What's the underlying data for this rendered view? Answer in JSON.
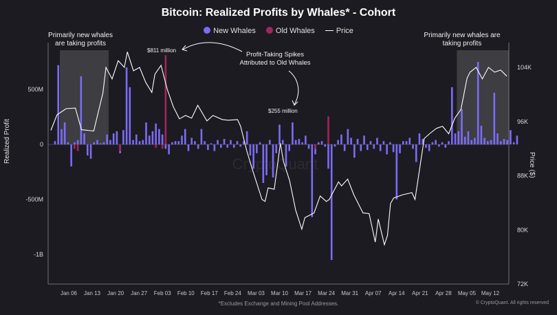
{
  "title": "Bitcoin: Realized Profits by Whales* - Cohort",
  "legend": [
    {
      "name": "New Whales",
      "color": "#7b6cf6",
      "kind": "dot"
    },
    {
      "name": "Old Whales",
      "color": "#a3255f",
      "kind": "dot"
    },
    {
      "name": "Price",
      "color": "#ffffff",
      "kind": "line"
    }
  ],
  "footnote": "*Excludes Exchange and Mining Pool Addresses.",
  "credit": "© CryptoQuant. All rights reserved",
  "watermark": "CryptoQuant",
  "annotations": {
    "left_box": "Primarily new whales are taking profits",
    "right_box": "Primarily new whales are taking profits",
    "spike_811": "$811 million",
    "spike_255": "$255 million",
    "center_note": "Profit-Taking Spikes Attributed to Old Whales"
  },
  "chart_data": {
    "type": "bar",
    "title": "Bitcoin: Realized Profits by Whales* - Cohort",
    "ylabel": "Realized Profit",
    "ylabel_right": "Price ($)",
    "left_axis": {
      "ticks": [
        500000000,
        0,
        -500000000,
        -1000000000
      ],
      "tick_labels": [
        "500M",
        "0",
        "-500M",
        "-1B"
      ],
      "range": [
        -1300000000,
        900000000
      ]
    },
    "right_axis": {
      "ticks": [
        104000,
        96000,
        88000,
        80000,
        72000
      ],
      "tick_labels": [
        "104K",
        "96K",
        "88K",
        "80K",
        "72K"
      ],
      "range": [
        72000,
        107000
      ]
    },
    "x_ticks": [
      "Jan 06",
      "Jan 13",
      "Jan 20",
      "Jan 27",
      "Feb 03",
      "Feb 10",
      "Feb 17",
      "Feb 24",
      "Mar 03",
      "Mar 10",
      "Mar 17",
      "Mar 24",
      "Mar 31",
      "Apr 07",
      "Apr 14",
      "Apr 21",
      "Apr 28",
      "May 05",
      "May 12"
    ],
    "days": 139,
    "new_whales": [
      30,
      720,
      140,
      200,
      20,
      -200,
      20,
      40,
      620,
      100,
      -100,
      -130,
      20,
      40,
      10,
      20,
      90,
      40,
      100,
      120,
      -80,
      130,
      700,
      520,
      40,
      90,
      30,
      40,
      200,
      80,
      120,
      190,
      140,
      90,
      -40,
      -90,
      20,
      30,
      30,
      80,
      140,
      -60,
      60,
      30,
      -40,
      140,
      30,
      -50,
      10,
      -60,
      40,
      -30,
      50,
      -30,
      40,
      -30,
      30,
      -20,
      30,
      120,
      -100,
      -220,
      -80,
      20,
      -350,
      -280,
      40,
      -300,
      -80,
      180,
      40,
      -200,
      -60,
      200,
      40,
      50,
      20,
      80,
      -40,
      -660,
      -90,
      20,
      30,
      -20,
      -220,
      -1050,
      -20,
      40,
      90,
      -60,
      140,
      60,
      -120,
      50,
      -60,
      80,
      -50,
      30,
      -40,
      60,
      -60,
      30,
      -90,
      20,
      -70,
      -500,
      -80,
      30,
      30,
      60,
      -40,
      -160,
      100,
      50,
      -30,
      -60,
      20,
      40,
      -20,
      20,
      -30,
      30,
      520,
      100,
      120,
      320,
      70,
      120,
      40,
      60,
      750,
      170,
      60,
      30,
      40,
      470,
      100,
      30,
      50,
      40,
      130,
      20,
      80
    ],
    "old_whales": [
      0,
      0,
      0,
      0,
      0,
      0,
      -40,
      -60,
      0,
      0,
      0,
      0,
      0,
      0,
      0,
      0,
      0,
      0,
      0,
      0,
      -60,
      0,
      0,
      0,
      0,
      0,
      0,
      0,
      0,
      0,
      0,
      -30,
      0,
      -40,
      811,
      0,
      0,
      0,
      0,
      0,
      0,
      0,
      0,
      0,
      0,
      0,
      0,
      0,
      0,
      0,
      0,
      0,
      0,
      0,
      0,
      0,
      0,
      0,
      0,
      0,
      0,
      0,
      0,
      0,
      0,
      0,
      0,
      0,
      0,
      0,
      0,
      0,
      0,
      0,
      0,
      0,
      0,
      0,
      0,
      0,
      -40,
      0,
      0,
      0,
      255,
      0,
      0,
      0,
      0,
      0,
      0,
      0,
      0,
      0,
      0,
      0,
      0,
      0,
      0,
      0,
      0,
      0,
      0,
      0,
      0,
      0,
      0,
      0,
      0,
      0,
      0,
      0,
      0,
      0,
      0,
      0,
      0,
      0,
      0,
      0,
      0,
      0,
      0,
      0,
      0,
      0,
      0,
      0,
      0,
      0,
      0,
      0,
      0,
      0,
      0,
      0,
      0,
      0,
      0
    ],
    "price": [
      [
        0,
        94700
      ],
      [
        2,
        97000
      ],
      [
        5,
        97900
      ],
      [
        8,
        98000
      ],
      [
        10,
        94800
      ],
      [
        14,
        94600
      ],
      [
        17,
        100200
      ],
      [
        18,
        104000
      ],
      [
        20,
        102300
      ],
      [
        22,
        105000
      ],
      [
        24,
        104000
      ],
      [
        25,
        106300
      ],
      [
        27,
        103500
      ],
      [
        29,
        104000
      ],
      [
        31,
        101800
      ],
      [
        33,
        100300
      ],
      [
        34,
        103000
      ],
      [
        36,
        104300
      ],
      [
        38,
        100800
      ],
      [
        40,
        98200
      ],
      [
        42,
        96400
      ],
      [
        44,
        96900
      ],
      [
        46,
        96500
      ],
      [
        48,
        98400
      ],
      [
        51,
        96100
      ],
      [
        53,
        96900
      ],
      [
        56,
        96300
      ],
      [
        58,
        96200
      ],
      [
        61,
        96300
      ],
      [
        62,
        95300
      ],
      [
        64,
        91700
      ],
      [
        66,
        88700
      ],
      [
        69,
        84500
      ],
      [
        70,
        84200
      ],
      [
        71,
        86200
      ],
      [
        73,
        86000
      ],
      [
        75,
        92800
      ],
      [
        76,
        90100
      ],
      [
        78,
        87300
      ],
      [
        80,
        82900
      ],
      [
        82,
        80100
      ],
      [
        83,
        81800
      ],
      [
        86,
        82500
      ],
      [
        88,
        85000
      ],
      [
        90,
        84200
      ],
      [
        91,
        84500
      ],
      [
        94,
        87100
      ],
      [
        95,
        86500
      ],
      [
        97,
        87500
      ],
      [
        99,
        85200
      ],
      [
        102,
        82500
      ],
      [
        104,
        82400
      ],
      [
        106,
        78200
      ],
      [
        107,
        81600
      ],
      [
        109,
        77800
      ],
      [
        110,
        79200
      ],
      [
        111,
        83900
      ],
      [
        112,
        84700
      ],
      [
        115,
        85200
      ],
      [
        118,
        85500
      ],
      [
        119,
        84500
      ],
      [
        120,
        87500
      ],
      [
        122,
        93500
      ],
      [
        124,
        94300
      ],
      [
        126,
        95000
      ],
      [
        128,
        95300
      ],
      [
        130,
        94200
      ],
      [
        132,
        96500
      ],
      [
        134,
        97800
      ],
      [
        136,
        102400
      ],
      [
        137,
        103300
      ],
      [
        139,
        104000
      ],
      [
        141,
        102300
      ],
      [
        143,
        104000
      ],
      [
        145,
        103300
      ],
      [
        147,
        103600
      ],
      [
        149,
        102700
      ]
    ],
    "shaded_regions": [
      [
        2,
        16
      ],
      [
        124,
        139
      ]
    ]
  }
}
